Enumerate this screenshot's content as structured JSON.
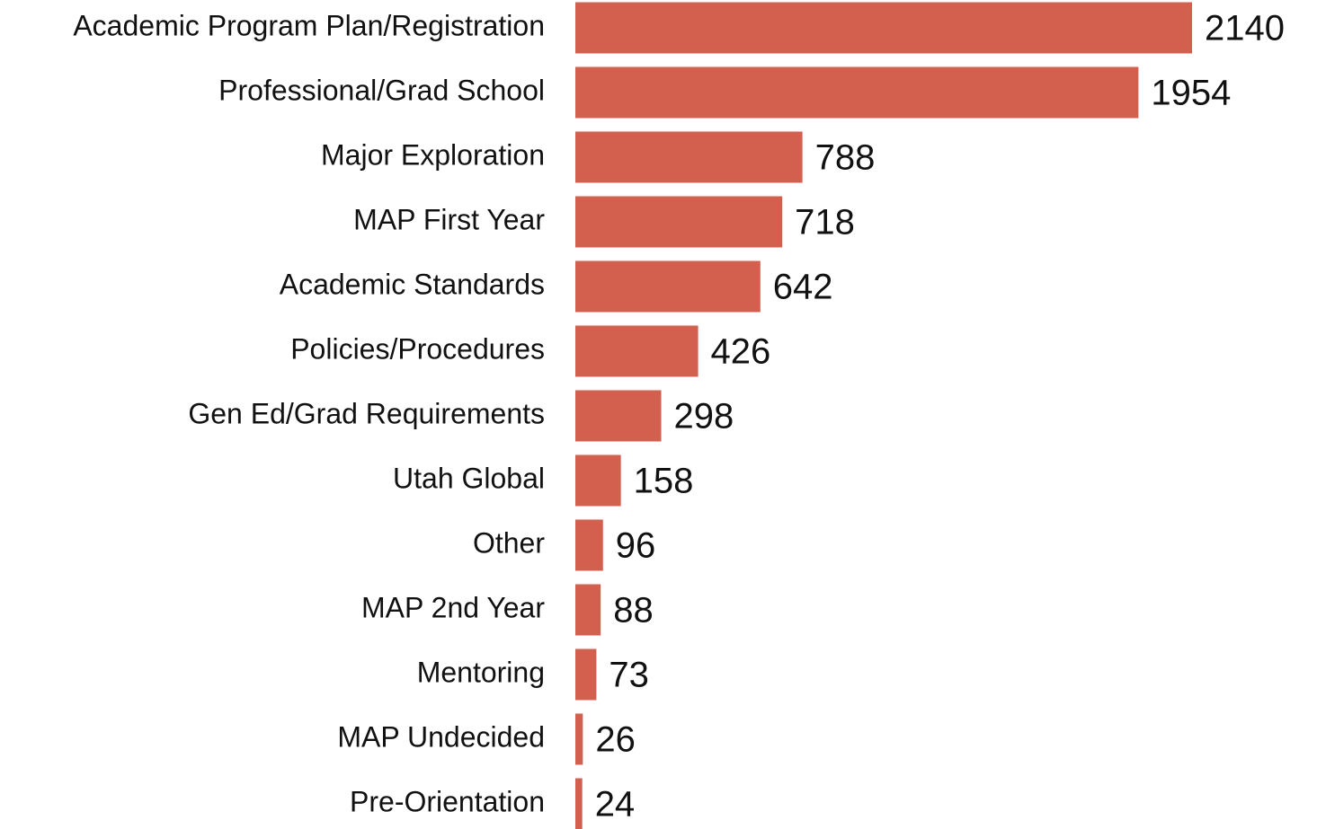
{
  "chart_data": {
    "type": "bar",
    "orientation": "horizontal",
    "categories": [
      "Academic Program Plan/Registration",
      "Professional/Grad School",
      "Major Exploration",
      "MAP First Year",
      "Academic Standards",
      "Policies/Procedures",
      "Gen Ed/Grad Requirements",
      "Utah Global",
      "Other",
      "MAP 2nd Year",
      "Mentoring",
      "MAP Undecided",
      "Pre-Orientation"
    ],
    "values": [
      2140,
      1954,
      788,
      718,
      642,
      426,
      298,
      158,
      96,
      88,
      73,
      26,
      24
    ],
    "color": "#d35f4f"
  }
}
